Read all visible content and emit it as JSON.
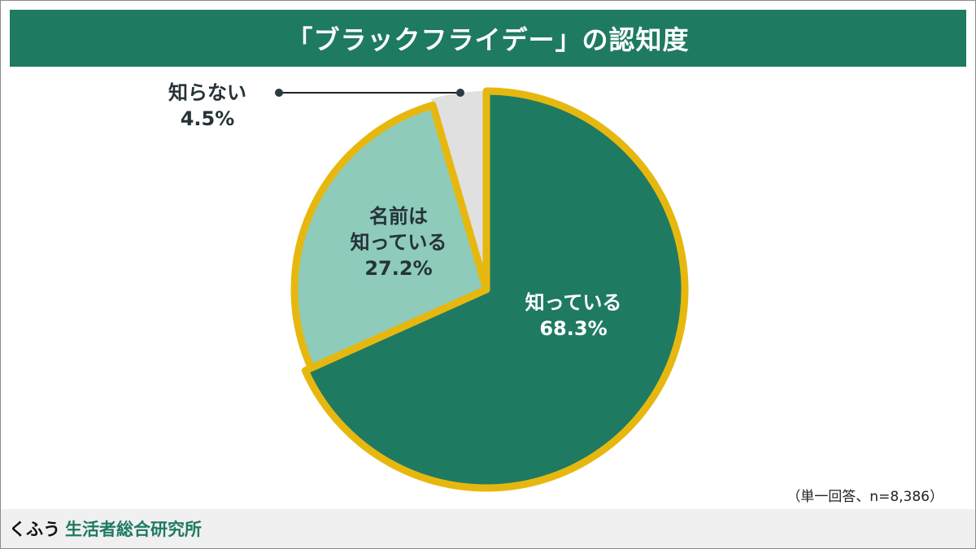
{
  "title": "「ブラックフライデー」の認知度",
  "note": "（単一回答、n=8,386）",
  "footer": {
    "brand": "くふう",
    "org": "生活者総合研究所"
  },
  "colors": {
    "header": "#1f7a62",
    "known": "#1f7a62",
    "name_only": "#8ecbbb",
    "unknown": "#e0e0e0",
    "outline": "#e6b80f"
  },
  "chart_data": {
    "type": "pie",
    "title": "「ブラックフライデー」の認知度",
    "unit": "%",
    "slices": [
      {
        "label": "知っている",
        "value": 68.3,
        "display": "68.3%",
        "color": "#1f7a62"
      },
      {
        "label": "名前は知っている",
        "label_lines": [
          "名前は",
          "知っている"
        ],
        "value": 27.2,
        "display": "27.2%",
        "color": "#8ecbbb"
      },
      {
        "label": "知らない",
        "value": 4.5,
        "display": "4.5%",
        "color": "#e0e0e0"
      }
    ]
  }
}
